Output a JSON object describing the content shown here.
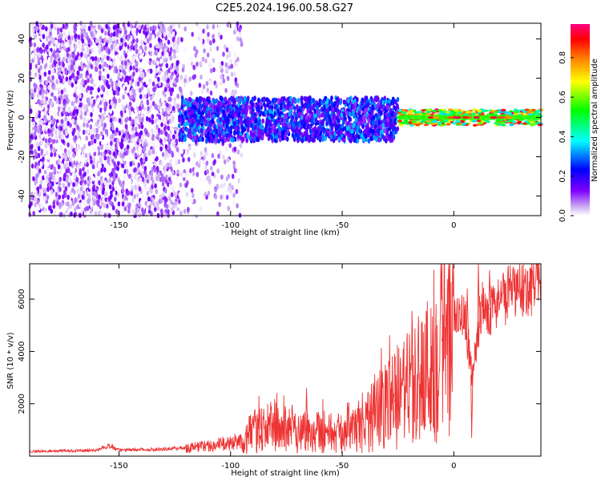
{
  "title": "C2E5.2024.196.00.58.G27",
  "chart_data": [
    {
      "type": "heatmap",
      "xlabel": "Height of straight line (km)",
      "ylabel": "Frequency (Hz)",
      "xlim": [
        -190,
        39
      ],
      "ylim": [
        -50,
        48
      ],
      "xticks": [
        -150,
        -100,
        -50,
        0
      ],
      "yticks": [
        -40,
        -20,
        0,
        20,
        40
      ],
      "colorbar": {
        "label": "Normalized spectral amplitude",
        "range": [
          0.0,
          0.97
        ],
        "ticks": [
          0.0,
          0.2,
          0.4,
          0.6,
          0.8
        ],
        "colormap": "gist_rainbow (violet to red)",
        "colors": [
          "#ffffff",
          "#c9a6f2",
          "#7f00ff",
          "#0000ff",
          "#00ffff",
          "#00ff00",
          "#ffff00",
          "#ff8000",
          "#ff0000",
          "#ff0080"
        ]
      },
      "regions": [
        {
          "x_range": [
            -190,
            -123
          ],
          "frequency_range": [
            -50,
            48
          ],
          "amplitude_range": [
            0.0,
            0.15
          ],
          "description": "diffuse noise"
        },
        {
          "x_range": [
            -123,
            -95
          ],
          "frequency_range": [
            -50,
            48
          ],
          "amplitude_range": [
            0.0,
            0.12
          ],
          "description": "sparse noise"
        },
        {
          "x_range": [
            -123,
            -25
          ],
          "frequency_range": [
            -12,
            10
          ],
          "amplitude_range": [
            0.1,
            0.35
          ],
          "description": "signal band"
        },
        {
          "x_range": [
            -25,
            39
          ],
          "frequency_range": [
            -4,
            4
          ],
          "amplitude_range": [
            0.35,
            0.97
          ],
          "description": "strong carrier near 0 Hz"
        }
      ]
    },
    {
      "type": "line",
      "xlabel": "Height of straight line (km)",
      "ylabel": "SNR (10 * v/v)",
      "xlim": [
        -190,
        39
      ],
      "ylim": [
        0,
        7350
      ],
      "xticks": [
        -150,
        -100,
        -50,
        0
      ],
      "yticks": [
        2000,
        4000,
        6000
      ],
      "color": "#ee3333",
      "series": [
        {
          "x": [
            -190,
            -175,
            -160,
            -155,
            -150,
            -140,
            -130,
            -120,
            -110,
            -105,
            -100,
            -95,
            -90,
            -85,
            -80,
            -75,
            -70,
            -65,
            -60,
            -55,
            -50,
            -45,
            -40,
            -35,
            -30,
            -25,
            -20,
            -15,
            -10,
            -5,
            0,
            5,
            8,
            10,
            12,
            15,
            20,
            25,
            30,
            35,
            39
          ],
          "y": [
            180,
            200,
            220,
            400,
            230,
            250,
            270,
            320,
            400,
            450,
            500,
            600,
            900,
            1100,
            1000,
            1050,
            1000,
            950,
            1000,
            900,
            850,
            900,
            1200,
            1700,
            1900,
            2200,
            2600,
            3100,
            3400,
            4400,
            5100,
            5300,
            3100,
            4100,
            5700,
            5500,
            5900,
            6200,
            6400,
            6500,
            6650
          ],
          "peaks": [
            {
              "x": -153,
              "y": 450
            },
            {
              "x": -87,
              "y": 1800
            },
            {
              "x": -66,
              "y": 2600
            },
            {
              "x": -36,
              "y": 2800
            },
            {
              "x": -28,
              "y": 2850
            },
            {
              "x": -27,
              "y": 2400
            },
            {
              "x": -10,
              "y": 3700
            },
            {
              "x": -5,
              "y": 4700
            },
            {
              "x": 6,
              "y": 6400
            },
            {
              "x": 11,
              "y": 7400
            },
            {
              "x": 16,
              "y": 7100
            },
            {
              "x": 8,
              "y": 700
            }
          ]
        }
      ]
    }
  ]
}
